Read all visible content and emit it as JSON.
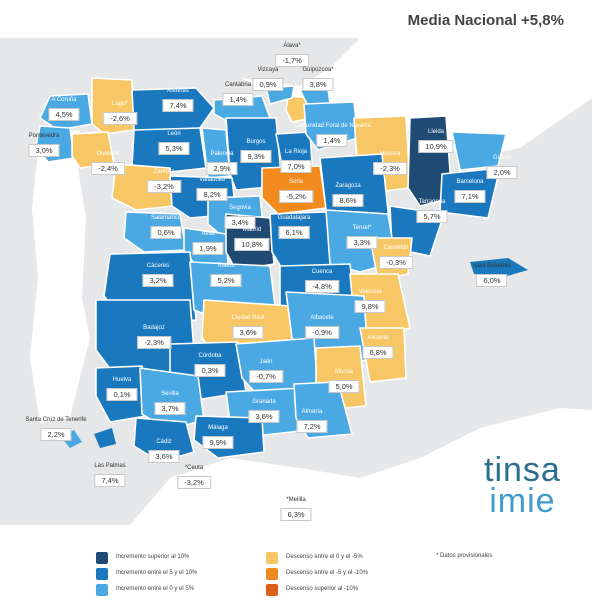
{
  "title": "Media Nacional +5,8%",
  "logo": {
    "line1": "tinsa",
    "line2": "imie"
  },
  "colors": {
    "dark_blue": "#1f4a74",
    "mid_blue": "#1a79be",
    "light_blue": "#4aa8e3",
    "yellow": "#f8c765",
    "orange": "#f28a1e",
    "dark_orange": "#d9611a",
    "sea": "#e6e7e8",
    "land": "#ffffff"
  },
  "legend": [
    {
      "label": "Incremento superior al 10%",
      "color": "#1f4a74"
    },
    {
      "label": "Incremento entre el 5 y el 10%",
      "color": "#1a79be"
    },
    {
      "label": "Incremento entre el 0 y el 5%",
      "color": "#4aa8e3"
    },
    {
      "label": "Descenso entre el 0 y el -5%",
      "color": "#f8c765"
    },
    {
      "label": "Descenso entre el -5 y el -10%",
      "color": "#f28a1e"
    },
    {
      "label": "Descenso superior al -10%",
      "color": "#d9611a"
    }
  ],
  "note": "* Datos provisionales",
  "provinces": [
    {
      "name": "A Coruña",
      "value": "4,5%"
    },
    {
      "name": "Lugo*",
      "value": "-2,6%"
    },
    {
      "name": "Asturias",
      "value": "7,4%"
    },
    {
      "name": "Cantabria",
      "value": "1,4%"
    },
    {
      "name": "Álava*",
      "value": "-1,7%"
    },
    {
      "name": "Vizcaya",
      "value": "0,9%"
    },
    {
      "name": "Guipúzcoa*",
      "value": "3,8%"
    },
    {
      "name": "Pontevedra",
      "value": "3,0%"
    },
    {
      "name": "Ourense",
      "value": "-2,4%"
    },
    {
      "name": "León",
      "value": "5,3%"
    },
    {
      "name": "Palencia",
      "value": "2,9%"
    },
    {
      "name": "Burgos",
      "value": "9,3%"
    },
    {
      "name": "La Rioja",
      "value": "7,0%"
    },
    {
      "name": "Comunidad Foral de Navarra",
      "value": "1,4%"
    },
    {
      "name": "Huesca",
      "value": "-2,3%"
    },
    {
      "name": "Lleida",
      "value": "10,9%"
    },
    {
      "name": "Girona",
      "value": "2,0%"
    },
    {
      "name": "Zamora",
      "value": "-3,2%"
    },
    {
      "name": "Valladolid",
      "value": "8,2%"
    },
    {
      "name": "Soria",
      "value": "-5,2%"
    },
    {
      "name": "Zaragoza",
      "value": "8,6%"
    },
    {
      "name": "Barcelona",
      "value": "7,1%"
    },
    {
      "name": "Tarragona",
      "value": "5,7%"
    },
    {
      "name": "Salamanca",
      "value": "0,6%"
    },
    {
      "name": "Segovia",
      "value": "3,4%"
    },
    {
      "name": "Ávila",
      "value": "1,9%"
    },
    {
      "name": "Madrid",
      "value": "10,8%"
    },
    {
      "name": "Guadalajara",
      "value": "6,1%"
    },
    {
      "name": "Teruel*",
      "value": "3,3%"
    },
    {
      "name": "Castellón",
      "value": "-0,3%"
    },
    {
      "name": "Islas Baleares",
      "value": "6,0%"
    },
    {
      "name": "Cáceres",
      "value": "3,2%"
    },
    {
      "name": "Toledo",
      "value": "5,2%"
    },
    {
      "name": "Cuenca",
      "value": "-4,8%"
    },
    {
      "name": "Valencia",
      "value": "9,8%"
    },
    {
      "name": "Badajoz",
      "value": "-2,3%"
    },
    {
      "name": "Ciudad Real",
      "value": "3,6%"
    },
    {
      "name": "Albacete",
      "value": "-0,9%"
    },
    {
      "name": "Alicante",
      "value": "6,8%"
    },
    {
      "name": "Córdoba",
      "value": "0,3%"
    },
    {
      "name": "Jaén",
      "value": "-0,7%"
    },
    {
      "name": "Murcia",
      "value": "5,0%"
    },
    {
      "name": "Huelva",
      "value": "0,1%"
    },
    {
      "name": "Sevilla",
      "value": "3,7%"
    },
    {
      "name": "Granada",
      "value": "3,6%"
    },
    {
      "name": "Almería",
      "value": "7,2%"
    },
    {
      "name": "Málaga",
      "value": "9,9%"
    },
    {
      "name": "Cádiz",
      "value": "3,6%"
    },
    {
      "name": "Santa Cruz de Tenerife",
      "value": "2,2%"
    },
    {
      "name": "Las Palmas",
      "value": "7,4%"
    },
    {
      "name": "*Ceuta",
      "value": "-3,2%"
    },
    {
      "name": "*Melilla",
      "value": "6,3%"
    }
  ]
}
